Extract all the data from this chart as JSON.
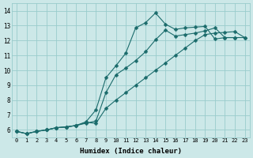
{
  "xlabel": "Humidex (Indice chaleur)",
  "bg_color": "#cce8e8",
  "grid_color": "#99cccc",
  "line_color": "#1a6b6b",
  "xlim": [
    -0.5,
    23.5
  ],
  "ylim": [
    5.5,
    14.5
  ],
  "xticks": [
    0,
    1,
    2,
    3,
    4,
    5,
    6,
    7,
    8,
    9,
    10,
    11,
    12,
    13,
    14,
    15,
    16,
    17,
    18,
    19,
    20,
    21,
    22,
    23
  ],
  "yticks": [
    6,
    7,
    8,
    9,
    10,
    11,
    12,
    13,
    14
  ],
  "line1_x": [
    0,
    1,
    2,
    3,
    4,
    5,
    6,
    7,
    8,
    9,
    10,
    11,
    12,
    13,
    14,
    15,
    16,
    17,
    18,
    19,
    20,
    21,
    22
  ],
  "line1_y": [
    5.9,
    5.75,
    5.9,
    6.0,
    6.15,
    6.2,
    6.3,
    6.55,
    7.35,
    9.5,
    10.3,
    11.15,
    12.85,
    13.2,
    13.85,
    13.1,
    12.75,
    12.85,
    12.9,
    12.95,
    12.1,
    12.2,
    12.2
  ],
  "line2_x": [
    0,
    1,
    2,
    3,
    4,
    5,
    6,
    7,
    8,
    9,
    10,
    11,
    12,
    13,
    14,
    15,
    16,
    17,
    18,
    19,
    20,
    21,
    22,
    23
  ],
  "line2_y": [
    5.9,
    5.75,
    5.9,
    6.0,
    6.15,
    6.2,
    6.3,
    6.45,
    6.6,
    8.5,
    9.7,
    10.15,
    10.65,
    11.25,
    12.05,
    12.7,
    12.3,
    12.4,
    12.5,
    12.65,
    12.85,
    12.2,
    12.2,
    12.2
  ],
  "line3_x": [
    0,
    1,
    2,
    3,
    4,
    5,
    6,
    7,
    8,
    9,
    10,
    11,
    12,
    13,
    14,
    15,
    16,
    17,
    18,
    19,
    20,
    21,
    22,
    23
  ],
  "line3_y": [
    5.9,
    5.75,
    5.9,
    6.0,
    6.15,
    6.2,
    6.3,
    6.5,
    6.45,
    7.45,
    8.0,
    8.5,
    9.0,
    9.5,
    10.0,
    10.5,
    11.0,
    11.5,
    12.0,
    12.4,
    12.5,
    12.55,
    12.6,
    12.2
  ],
  "marker": "D",
  "marker_size": 2.5,
  "linewidth": 0.8
}
